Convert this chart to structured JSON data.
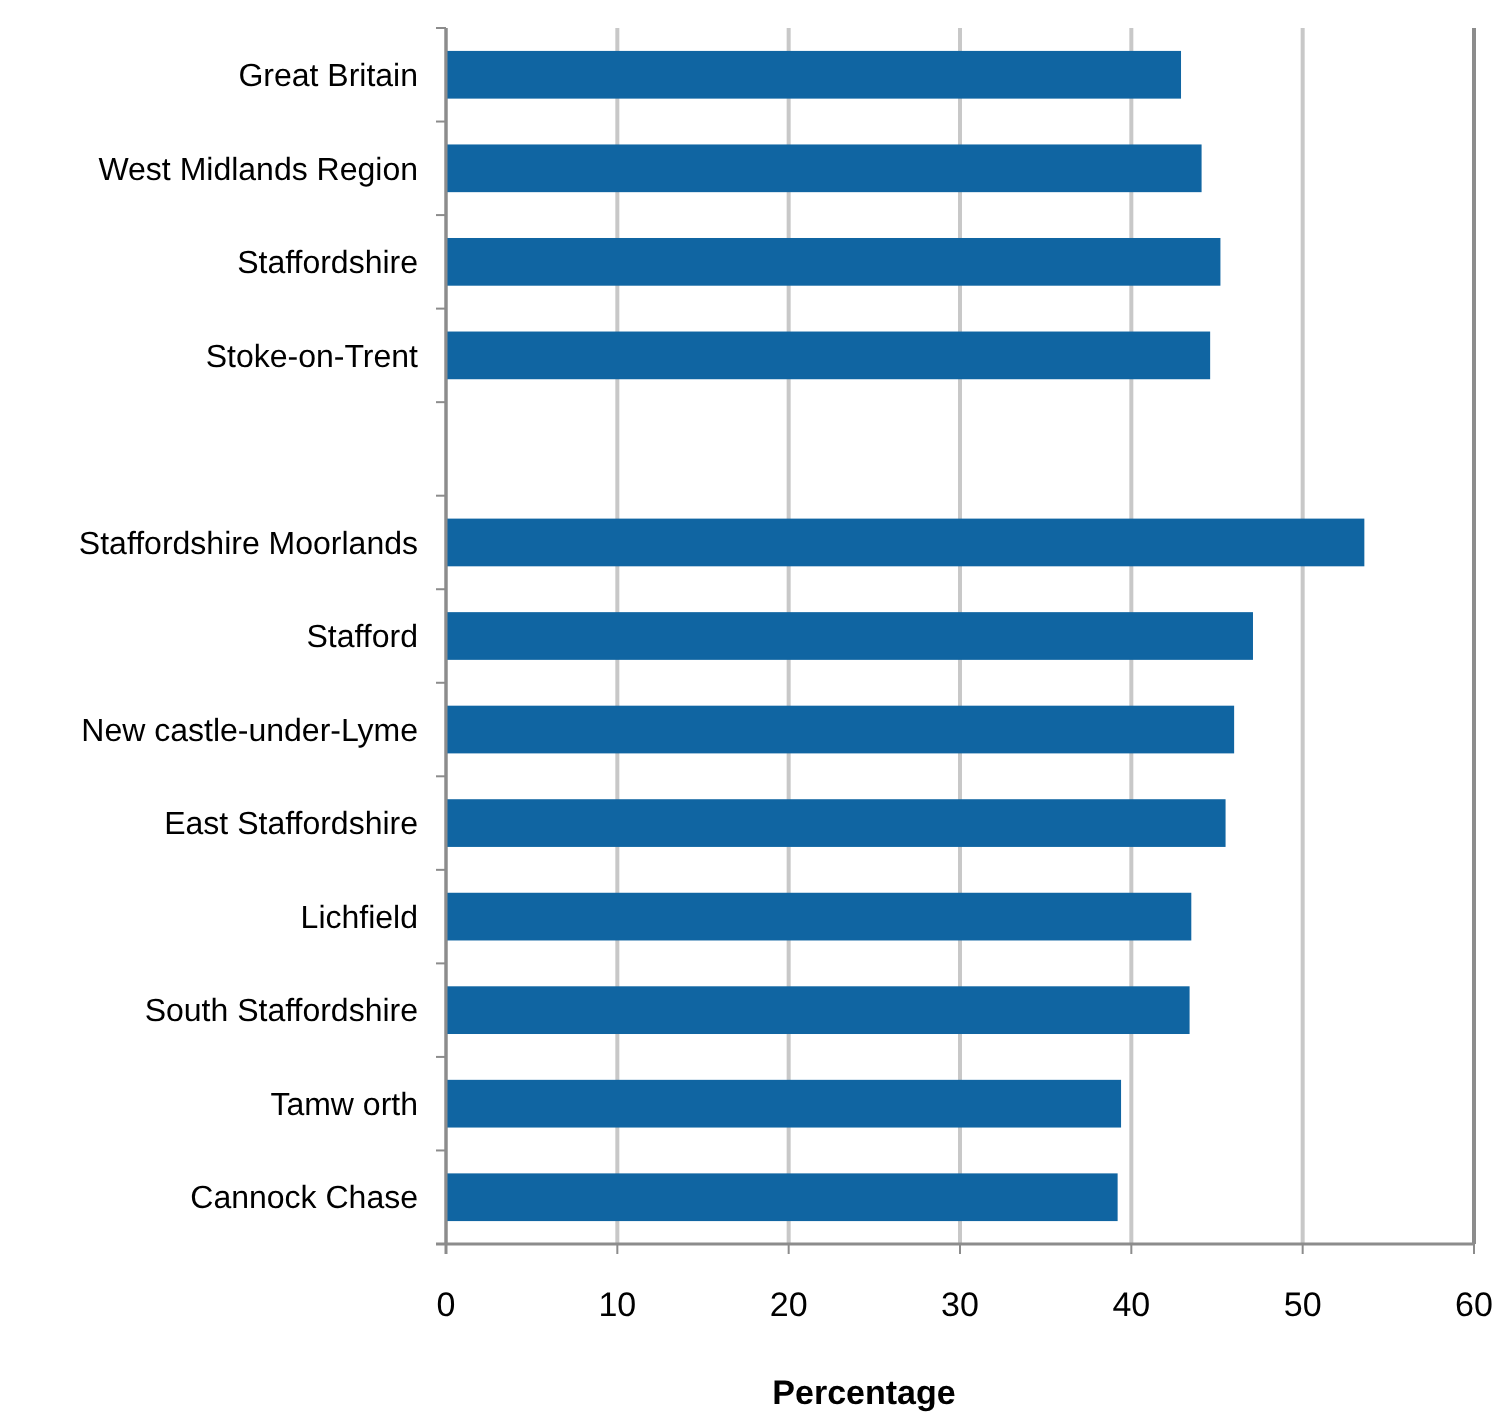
{
  "chart_data": {
    "type": "bar",
    "orientation": "horizontal",
    "xlabel": "Percentage",
    "categories": [
      "Great Britain",
      "West Midlands Region",
      "Staffordshire",
      "Stoke-on-Trent",
      null,
      "Staffordshire Moorlands",
      "Stafford",
      "New castle-under-Lyme",
      "East Staffordshire",
      "Lichfield",
      "South Staffordshire",
      "Tamw orth",
      "Cannock Chase"
    ],
    "values": [
      42.9,
      44.1,
      45.2,
      44.6,
      null,
      53.6,
      47.1,
      46.0,
      45.5,
      43.5,
      43.4,
      39.4,
      39.2
    ],
    "color": "#1065a2",
    "xlim": [
      0,
      60
    ],
    "xticks": [
      0,
      10,
      20,
      30,
      40,
      50,
      60
    ],
    "grid": "x"
  }
}
